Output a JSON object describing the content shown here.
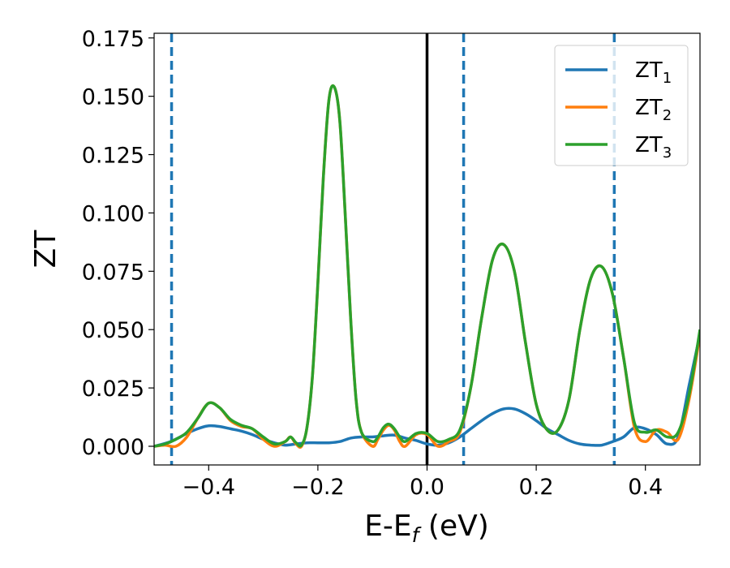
{
  "chart_data": {
    "type": "line",
    "xlabel": "E-E",
    "xlabel_sub": "f",
    "xlabel_unit": " (eV)",
    "ylabel": "ZT",
    "xlim": [
      -0.5,
      0.5
    ],
    "ylim": [
      -0.008,
      0.177
    ],
    "xticks": [
      -0.4,
      -0.2,
      0.0,
      0.2,
      0.4
    ],
    "xtick_labels": [
      "−0.4",
      "−0.2",
      "0.0",
      "0.2",
      "0.4"
    ],
    "yticks": [
      0.0,
      0.025,
      0.05,
      0.075,
      0.1,
      0.125,
      0.15,
      0.175
    ],
    "ytick_labels": [
      "0.000",
      "0.025",
      "0.050",
      "0.075",
      "0.100",
      "0.125",
      "0.150",
      "0.175"
    ],
    "grid": false,
    "legend_position": "top-right",
    "series": [
      {
        "name": "ZT",
        "subscript": "1",
        "color": "#1f77b4",
        "x": [
          -0.5,
          -0.47,
          -0.44,
          -0.42,
          -0.4,
          -0.38,
          -0.36,
          -0.34,
          -0.32,
          -0.3,
          -0.28,
          -0.26,
          -0.24,
          -0.22,
          -0.2,
          -0.18,
          -0.16,
          -0.14,
          -0.12,
          -0.1,
          -0.08,
          -0.06,
          -0.04,
          -0.02,
          0.0,
          0.02,
          0.04,
          0.06,
          0.08,
          0.1,
          0.12,
          0.14,
          0.16,
          0.18,
          0.2,
          0.22,
          0.24,
          0.26,
          0.28,
          0.3,
          0.32,
          0.34,
          0.36,
          0.38,
          0.4,
          0.42,
          0.44,
          0.46,
          0.48,
          0.5
        ],
        "y": [
          0.0,
          0.002,
          0.0055,
          0.0075,
          0.0088,
          0.0085,
          0.0075,
          0.0065,
          0.005,
          0.003,
          0.0015,
          0.0005,
          0.001,
          0.0015,
          0.0015,
          0.0015,
          0.002,
          0.0035,
          0.004,
          0.004,
          0.0045,
          0.0048,
          0.0035,
          0.0025,
          0.001,
          0.0005,
          0.0015,
          0.004,
          0.0075,
          0.011,
          0.014,
          0.016,
          0.016,
          0.014,
          0.011,
          0.0075,
          0.005,
          0.0025,
          0.001,
          0.0005,
          0.0005,
          0.002,
          0.004,
          0.008,
          0.0075,
          0.005,
          0.001,
          0.004,
          0.026,
          0.048
        ]
      },
      {
        "name": "ZT",
        "subscript": "2",
        "color": "#ff7f0e",
        "x": [
          -0.5,
          -0.48,
          -0.46,
          -0.44,
          -0.42,
          -0.4,
          -0.38,
          -0.36,
          -0.34,
          -0.32,
          -0.3,
          -0.28,
          -0.26,
          -0.25,
          -0.24,
          -0.23,
          -0.22,
          -0.21,
          -0.2,
          -0.19,
          -0.18,
          -0.17,
          -0.16,
          -0.15,
          -0.14,
          -0.13,
          -0.12,
          -0.1,
          -0.09,
          -0.08,
          -0.07,
          -0.06,
          -0.05,
          -0.04,
          -0.02,
          0.0,
          0.02,
          0.04,
          0.06,
          0.08,
          0.1,
          0.12,
          0.14,
          0.16,
          0.18,
          0.2,
          0.22,
          0.24,
          0.26,
          0.28,
          0.3,
          0.32,
          0.34,
          0.36,
          0.38,
          0.4,
          0.42,
          0.44,
          0.46,
          0.48,
          0.5
        ],
        "y": [
          0.0,
          0.0005,
          0.0,
          0.004,
          0.012,
          0.0185,
          0.0165,
          0.011,
          0.0085,
          0.0075,
          0.003,
          0.0,
          0.002,
          0.004,
          0.001,
          0.0,
          0.008,
          0.03,
          0.07,
          0.115,
          0.148,
          0.154,
          0.14,
          0.1,
          0.055,
          0.02,
          0.006,
          0.0,
          0.003,
          0.007,
          0.009,
          0.007,
          0.002,
          0.0,
          0.005,
          0.005,
          0.0,
          0.002,
          0.006,
          0.025,
          0.055,
          0.08,
          0.0865,
          0.075,
          0.045,
          0.018,
          0.007,
          0.007,
          0.02,
          0.05,
          0.072,
          0.077,
          0.065,
          0.038,
          0.008,
          0.002,
          0.007,
          0.006,
          0.003,
          0.02,
          0.048
        ]
      },
      {
        "name": "ZT",
        "subscript": "3",
        "color": "#2ca02c",
        "x": [
          -0.5,
          -0.48,
          -0.46,
          -0.44,
          -0.42,
          -0.4,
          -0.38,
          -0.36,
          -0.34,
          -0.32,
          -0.3,
          -0.28,
          -0.26,
          -0.25,
          -0.24,
          -0.23,
          -0.22,
          -0.21,
          -0.2,
          -0.19,
          -0.18,
          -0.17,
          -0.16,
          -0.15,
          -0.14,
          -0.13,
          -0.12,
          -0.1,
          -0.09,
          -0.08,
          -0.07,
          -0.06,
          -0.05,
          -0.04,
          -0.02,
          0.0,
          0.02,
          0.04,
          0.06,
          0.08,
          0.1,
          0.12,
          0.14,
          0.16,
          0.18,
          0.2,
          0.22,
          0.24,
          0.26,
          0.28,
          0.3,
          0.32,
          0.34,
          0.36,
          0.38,
          0.4,
          0.42,
          0.44,
          0.46,
          0.48,
          0.5
        ],
        "y": [
          0.0,
          0.001,
          0.003,
          0.006,
          0.012,
          0.0185,
          0.0165,
          0.0115,
          0.009,
          0.0075,
          0.004,
          0.001,
          0.002,
          0.004,
          0.0015,
          0.0005,
          0.008,
          0.03,
          0.07,
          0.115,
          0.148,
          0.154,
          0.14,
          0.1,
          0.055,
          0.02,
          0.006,
          0.002,
          0.004,
          0.008,
          0.0095,
          0.0075,
          0.004,
          0.002,
          0.0055,
          0.0055,
          0.002,
          0.003,
          0.007,
          0.025,
          0.055,
          0.08,
          0.0865,
          0.075,
          0.045,
          0.018,
          0.007,
          0.007,
          0.02,
          0.05,
          0.072,
          0.077,
          0.065,
          0.038,
          0.01,
          0.006,
          0.007,
          0.004,
          0.006,
          0.022,
          0.05
        ]
      }
    ],
    "annotations": {
      "fermi_line": {
        "x": 0.0,
        "color": "#000000",
        "style": "solid"
      },
      "dashed_lines": {
        "x": [
          -0.468,
          0.067,
          0.343
        ],
        "color": "#1f77b4",
        "style": "dashed"
      }
    }
  }
}
